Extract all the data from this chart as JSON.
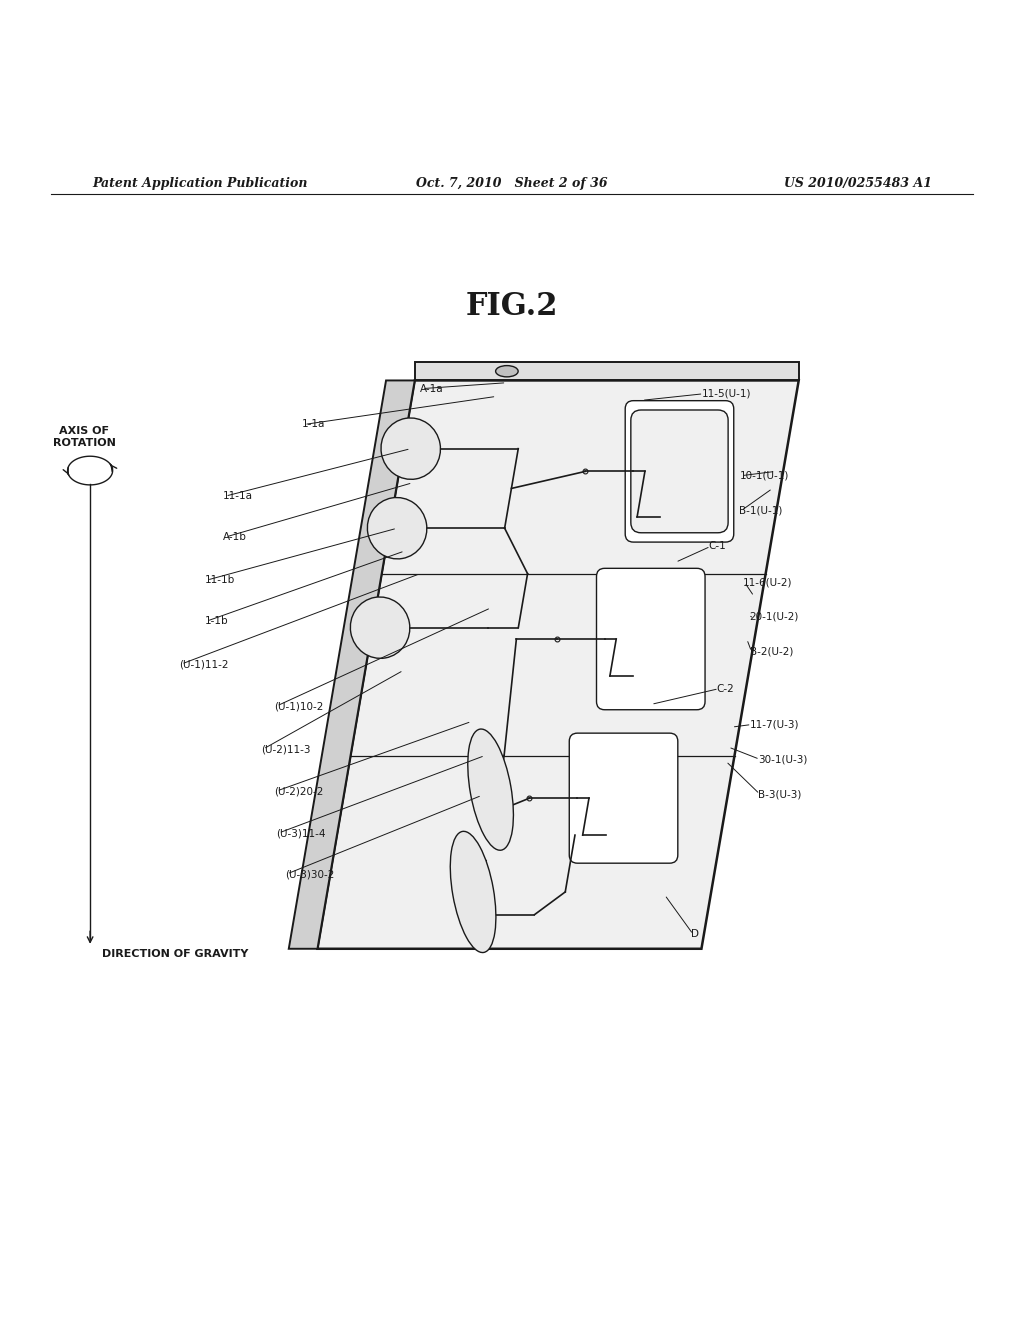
{
  "bg_color": "#ffffff",
  "line_color": "#1a1a1a",
  "header_left": "Patent Application Publication",
  "header_mid": "Oct. 7, 2010   Sheet 2 of 36",
  "header_right": "US 2010/0255483 A1",
  "fig_title": "FIG.2",
  "axis_of_rotation_label": "AXIS OF\nROTATION",
  "direction_of_gravity_label": "DIRECTION OF GRAVITY"
}
